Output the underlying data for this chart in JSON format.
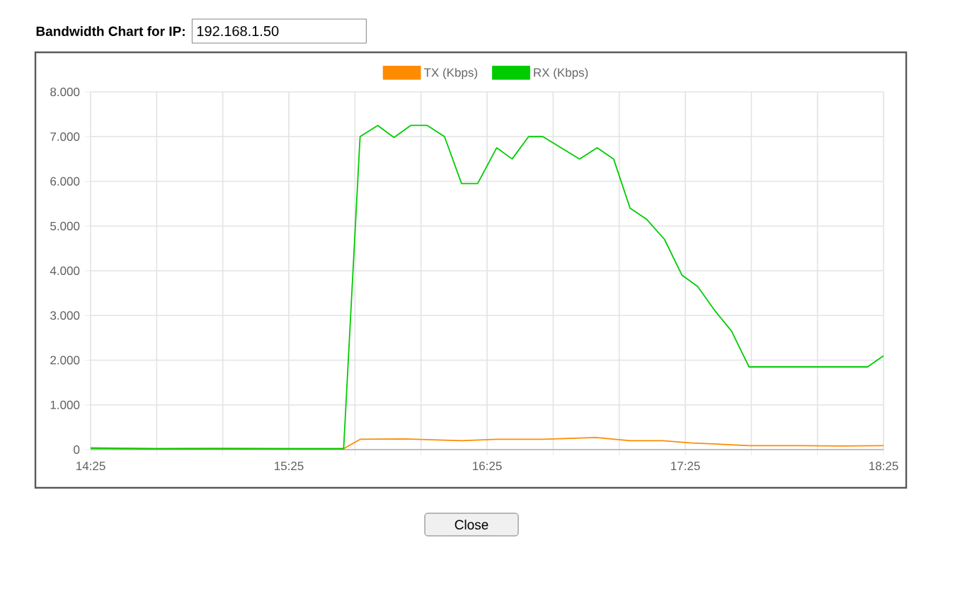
{
  "chart_data": {
    "type": "line",
    "title": "Bandwidth Chart for IP:",
    "subtitle": "192.168.1.50",
    "annotations": [
      "Close"
    ],
    "legend": "top",
    "grid": true,
    "marker": "none",
    "line_style": "solid",
    "xlim": [
      14.4167,
      18.4167
    ],
    "xticks": [
      {
        "value": 14.4167,
        "label": "14:25"
      },
      {
        "value": 14.75,
        "label": null
      },
      {
        "value": 15.0833,
        "label": null
      },
      {
        "value": 15.4167,
        "label": "15:25"
      },
      {
        "value": 15.75,
        "label": null
      },
      {
        "value": 16.0833,
        "label": null
      },
      {
        "value": 16.4167,
        "label": "16:25"
      },
      {
        "value": 16.75,
        "label": null
      },
      {
        "value": 17.0833,
        "label": null
      },
      {
        "value": 17.4167,
        "label": "17:25"
      },
      {
        "value": 17.75,
        "label": null
      },
      {
        "value": 18.0833,
        "label": null
      },
      {
        "value": 18.4167,
        "label": "18:25"
      }
    ],
    "ylim": [
      0,
      8000
    ],
    "yticks": [
      0,
      {
        "value": 1000,
        "label": "1.000"
      },
      {
        "value": 2000,
        "label": "2.000"
      },
      {
        "value": 3000,
        "label": "3.000"
      },
      {
        "value": 4000,
        "label": "4.000"
      },
      {
        "value": 5000,
        "label": "5.000"
      },
      {
        "value": 6000,
        "label": "6.000"
      },
      {
        "value": 7000,
        "label": "7.000"
      },
      {
        "value": 8000,
        "label": "8.000"
      }
    ],
    "series": [
      {
        "name": "TX (Kbps)",
        "color": "#ff8c00",
        "x": [
          14.4167,
          14.75,
          15.0833,
          15.4167,
          15.693,
          15.776,
          16.0,
          16.288,
          16.465,
          16.7,
          16.965,
          17.138,
          17.3,
          17.45,
          17.738,
          18.0,
          18.2,
          18.4167
        ],
        "values": [
          40,
          20,
          30,
          20,
          20,
          230,
          240,
          200,
          230,
          230,
          270,
          200,
          200,
          150,
          90,
          90,
          80,
          90
        ]
      },
      {
        "name": "RX (Kbps)",
        "color": "#00cc00",
        "x": [
          14.4167,
          14.75,
          15.0833,
          15.4167,
          15.693,
          15.776,
          15.865,
          15.947,
          16.031,
          16.115,
          16.202,
          16.288,
          16.369,
          16.465,
          16.543,
          16.626,
          16.698,
          16.883,
          16.972,
          17.055,
          17.138,
          17.222,
          17.312,
          17.4,
          17.479,
          17.567,
          17.65,
          17.738,
          18.336,
          18.4167
        ],
        "values": [
          30,
          20,
          20,
          20,
          20,
          7000,
          7250,
          6980,
          7250,
          7250,
          7000,
          5950,
          5950,
          6750,
          6500,
          7000,
          7000,
          6500,
          6750,
          6500,
          5400,
          5150,
          4700,
          3900,
          3650,
          3100,
          2650,
          1850,
          1850,
          2100
        ]
      }
    ]
  }
}
